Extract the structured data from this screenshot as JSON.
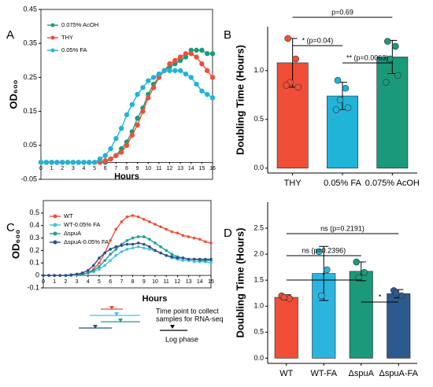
{
  "chart_data": [
    {
      "type": "line",
      "label": "A",
      "ylabel": "OD₆₀₀",
      "xlabel": "Hours",
      "x": [
        0,
        0.5,
        1,
        1.5,
        2,
        2.5,
        3,
        3.5,
        4,
        4.5,
        5,
        5.5,
        6,
        6.5,
        7,
        7.5,
        8,
        8.5,
        9,
        9.5,
        10,
        10.5,
        11,
        11.5,
        12,
        12.5,
        13,
        13.5,
        14,
        14.5,
        15,
        15.5,
        16
      ],
      "xlim": [
        0,
        16
      ],
      "xticks": [
        0,
        1,
        2,
        3,
        4,
        5,
        6,
        7,
        8,
        9,
        10,
        11,
        12,
        13,
        14,
        15,
        16
      ],
      "ylim": [
        -0.05,
        0.45
      ],
      "yticks": [
        -0.05,
        0.05,
        0.15,
        0.25,
        0.35,
        0.45
      ],
      "legend": "top-left",
      "series": [
        {
          "name": "0.075% AcOH",
          "color": "#1a9a7a",
          "values": [
            0,
            0,
            0,
            0,
            0,
            0,
            0,
            0,
            0,
            0,
            0,
            0,
            0,
            0.01,
            0.02,
            0.04,
            0.06,
            0.09,
            0.13,
            0.16,
            0.2,
            0.23,
            0.25,
            0.27,
            0.28,
            0.29,
            0.3,
            0.31,
            0.33,
            0.33,
            0.33,
            0.32,
            0.32
          ]
        },
        {
          "name": "THY",
          "color": "#f04e37",
          "values": [
            0,
            0,
            0,
            0,
            0,
            0,
            0,
            0,
            0,
            0,
            0,
            0,
            0.005,
            0.01,
            0.02,
            0.03,
            0.05,
            0.08,
            0.11,
            0.15,
            0.19,
            0.22,
            0.25,
            0.27,
            0.29,
            0.3,
            0.31,
            0.32,
            0.32,
            0.31,
            0.29,
            0.27,
            0.25
          ]
        },
        {
          "name": "0.05% FA",
          "color": "#1fb4d8",
          "values": [
            0,
            0,
            0,
            0,
            0,
            0,
            0,
            0,
            0,
            0,
            0,
            0.01,
            0.02,
            0.04,
            0.07,
            0.1,
            0.14,
            0.17,
            0.2,
            0.22,
            0.24,
            0.25,
            0.26,
            0.27,
            0.27,
            0.27,
            0.27,
            0.26,
            0.25,
            0.23,
            0.21,
            0.2,
            0.19
          ]
        }
      ]
    },
    {
      "type": "bar",
      "label": "B",
      "ylabel": "Doubling Time (Hours)",
      "categories": [
        "THY",
        "0.05% FA",
        "0.075% AcOH"
      ],
      "values": [
        1.08,
        0.74,
        1.14
      ],
      "errors": [
        0.25,
        0.14,
        0.17
      ],
      "colors": [
        "#f04e37",
        "#1fb4d8",
        "#1a9a7a"
      ],
      "points": [
        [
          1.33,
          1.12,
          0.88,
          0.83,
          0.85
        ],
        [
          0.9,
          0.82,
          0.7,
          0.62,
          0.6
        ],
        [
          1.3,
          1.25,
          1.12,
          0.95,
          0.88
        ]
      ],
      "ylim": [
        -0.05,
        1.45
      ],
      "yticks": [
        {
          "value": 0,
          "label": "0.0"
        },
        0.5,
        {
          "value": 1,
          "label": "1.0"
        }
      ],
      "annotations": [
        "p=0.69",
        "* (p=0.04)",
        "** (p=0.0063)"
      ]
    },
    {
      "type": "line",
      "label": "C",
      "ylabel": "OD₆₀₀",
      "xlabel": "Hours",
      "x": [
        0,
        0.5,
        1,
        1.5,
        2,
        2.5,
        3,
        3.5,
        4,
        4.5,
        5,
        5.5,
        6,
        6.5,
        7,
        7.5,
        8,
        8.5,
        9,
        9.5,
        10,
        10.5,
        11,
        11.5,
        12,
        12.5,
        13,
        13.5,
        14,
        14.5,
        15
      ],
      "xlim": [
        0,
        15
      ],
      "xticks": [
        0,
        1,
        2,
        3,
        4,
        5,
        6,
        7,
        8,
        9,
        10,
        11,
        12,
        13,
        14,
        15
      ],
      "ylim": [
        -0.1,
        0.6
      ],
      "yticks": [
        -0.1,
        0,
        0.1,
        0.2,
        0.3,
        0.4,
        0.5
      ],
      "legend": "top-left",
      "series": [
        {
          "name": "WT",
          "color": "#f04e37",
          "values": [
            0,
            0,
            0,
            0,
            0,
            0.005,
            0.01,
            0.01,
            0.02,
            0.05,
            0.1,
            0.18,
            0.28,
            0.37,
            0.43,
            0.47,
            0.48,
            0.47,
            0.45,
            0.43,
            0.41,
            0.39,
            0.37,
            0.35,
            0.34,
            0.32,
            0.31,
            0.3,
            0.29,
            0.27,
            0.26
          ]
        },
        {
          "name": "WT-0.05% FA",
          "color": "#45c2e6",
          "values": [
            0,
            0,
            0,
            0,
            0,
            0,
            0.005,
            0.01,
            0.02,
            0.03,
            0.05,
            0.08,
            0.12,
            0.16,
            0.19,
            0.21,
            0.22,
            0.23,
            0.22,
            0.21,
            0.2,
            0.18,
            0.16,
            0.14,
            0.13,
            0.12,
            0.12,
            0.11,
            0.11,
            0.11,
            0.1
          ]
        },
        {
          "name": "ΔspuA",
          "color": "#1f9e8f",
          "values": [
            0,
            0,
            0,
            0,
            0,
            0,
            0.01,
            0.01,
            0.02,
            0.04,
            0.07,
            0.12,
            0.17,
            0.21,
            0.25,
            0.28,
            0.3,
            0.31,
            0.31,
            0.29,
            0.26,
            0.23,
            0.2,
            0.17,
            0.15,
            0.14,
            0.13,
            0.13,
            0.12,
            0.12,
            0.12
          ]
        },
        {
          "name": "ΔspuA-0.05% FA",
          "color": "#2b4f8f",
          "values": [
            0,
            0,
            0,
            0,
            0,
            0.005,
            0.01,
            0.02,
            0.04,
            0.08,
            0.14,
            0.18,
            0.21,
            0.23,
            0.24,
            0.25,
            0.25,
            0.26,
            0.25,
            0.23,
            0.2,
            0.18,
            0.16,
            0.15,
            0.14,
            0.14,
            0.13,
            0.13,
            0.13,
            0.13,
            0.13
          ]
        }
      ],
      "annotations": [
        "Time point to collect",
        "samples for RNA-seq",
        "Log phase"
      ]
    },
    {
      "type": "bar",
      "label": "D",
      "ylabel": "Doubling Time (Hours)",
      "categories": [
        "WT",
        "WT-FA",
        "ΔspuA",
        "ΔspuA-FA"
      ],
      "values": [
        1.17,
        1.63,
        1.67,
        1.24
      ],
      "errors": [
        0.05,
        0.52,
        0.18,
        0.08
      ],
      "colors": [
        "#f04e37",
        "#2bb5de",
        "#1a9a7a",
        "#2d5a8e"
      ],
      "points": [
        [
          1.2,
          1.15,
          1.17
        ],
        [
          2.05,
          1.7,
          1.2
        ],
        [
          1.85,
          1.65,
          1.55
        ],
        [
          1.3,
          1.2,
          1.25
        ]
      ],
      "ylim": [
        -0.1,
        3.0
      ],
      "yticks": [
        {
          "value": 0,
          "label": "0.0"
        },
        0.5,
        {
          "value": 1,
          "label": "1.0"
        },
        1.5,
        {
          "value": 2,
          "label": "2.0"
        },
        2.5
      ],
      "annotations": [
        "ns (p=0.2191)",
        "ns (p=0.2396)",
        "*",
        "*"
      ]
    }
  ]
}
